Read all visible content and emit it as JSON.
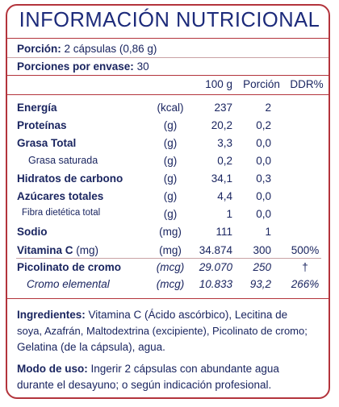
{
  "title": "INFORMACIÓN  NUTRICIONAL",
  "serving": {
    "label": "Porción:",
    "value": "2 cápsulas (0,86 g)"
  },
  "servings_per": {
    "label": "Porciones por envase:",
    "value": "30"
  },
  "headers": {
    "per100": "100 g",
    "portion": "Porción",
    "ddr": "DDR%"
  },
  "rows": [
    {
      "name": "Energía",
      "unit": "(kcal)",
      "per100": "237",
      "portion": "2",
      "ddr": ""
    },
    {
      "name": "Proteínas",
      "unit": "(g)",
      "per100": "20,2",
      "portion": "0,2",
      "ddr": ""
    },
    {
      "name": "Grasa Total",
      "unit": "(g)",
      "per100": "3,3",
      "portion": "0,0",
      "ddr": ""
    },
    {
      "name": "Grasa saturada",
      "unit": "(g)",
      "per100": "0,2",
      "portion": "0,0",
      "ddr": ""
    },
    {
      "name": "Hidratos de carbono",
      "unit": "(g)",
      "per100": "34,1",
      "portion": "0,3",
      "ddr": ""
    },
    {
      "name": "Azúcares totales",
      "unit": "(g)",
      "per100": "4,4",
      "portion": "0,0",
      "ddr": ""
    },
    {
      "name": "Fibra dietética total",
      "unit": "(g)",
      "per100": "1",
      "portion": "0,0",
      "ddr": ""
    },
    {
      "name": "Sodio",
      "unit": "(mg)",
      "per100": "111",
      "portion": "1",
      "ddr": ""
    },
    {
      "name": "Vitamina C",
      "name_suffix": "(mg)",
      "unit": "(mg)",
      "per100": "34.874",
      "portion": "300",
      "ddr": "500%"
    },
    {
      "name": "Picolinato de cromo",
      "unit": "(mcg)",
      "per100": "29.070",
      "portion": "250",
      "ddr": "†"
    },
    {
      "name": "Cromo elemental",
      "unit": "(mcg)",
      "per100": "10.833",
      "portion": "93,2",
      "ddr": "266%"
    }
  ],
  "ingredients": {
    "label": "Ingredientes:",
    "line1": "Vitamina C (Ácido ascórbico), Lecitina de",
    "line2": "soya, Azafrán, Maltodextrina (excipiente), Picolinato de cromo;",
    "line3": "Gelatina (de la cápsula), agua."
  },
  "usage": {
    "label": "Modo de uso:",
    "line1": "Ingerir 2 cápsulas con abundante agua",
    "line2": "durante el desayuno; o según indicación profesional."
  },
  "colors": {
    "text": "#1a2560",
    "border": "#b3343c"
  }
}
